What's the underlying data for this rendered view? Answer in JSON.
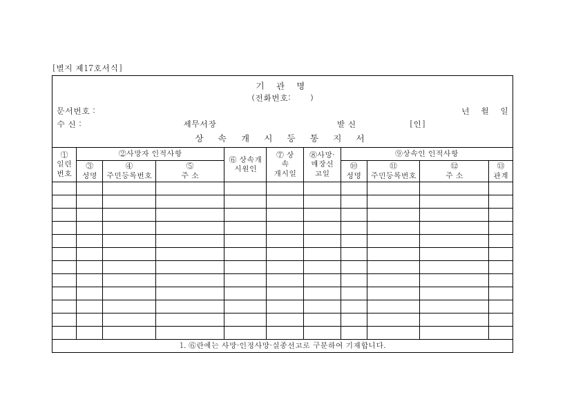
{
  "formRef": "[별지 제17호서식]",
  "header": {
    "agencyTitle": "기 관 명",
    "phoneLabel": "(전화번호:",
    "phoneClose": ")",
    "docNoLabel": "문서번호 :",
    "dateYear": "년",
    "dateMonth": "월",
    "dateDay": "일",
    "recipientLabel": "수  신 :",
    "taxOffice": "세무서장",
    "senderLabel": "발  신",
    "seal": "[인]",
    "subtitle": "상 속 개 시 등 통 지 서"
  },
  "cols": {
    "c1a": "①",
    "c1b": "일련",
    "c1c": "번호",
    "g2": "②사망자 인적사항",
    "c3a": "③",
    "c3b": "성명",
    "c4a": "④",
    "c4b": "주민등록번호",
    "c5a": "⑤",
    "c5b": "주  소",
    "c6a": "⑥ 상속개",
    "c6b": "시원인",
    "c7a": "⑦  상",
    "c7b": "속",
    "c7c": "개시일",
    "c8a": "⑧사망·",
    "c8b": "매장신",
    "c8c": "고일",
    "g9": "⑨상속인 인적사항",
    "c10a": "⑩",
    "c10b": "성명",
    "c11a": "⑪",
    "c11b": "주민등록번호",
    "c12a": "⑫",
    "c12b": "주  소",
    "c13a": "⑬",
    "c13b": "관계"
  },
  "note": "1. ⑥란에는 사망·인정사망·실종선고로 구분하여 기재합니다.",
  "style": {
    "rows": 12,
    "border_color": "#000000",
    "background": "#ffffff"
  }
}
